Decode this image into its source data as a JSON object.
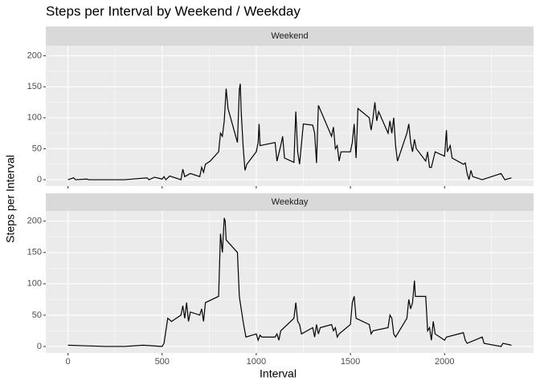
{
  "title": "Steps per Interval by Weekend / Weekday",
  "x_label": "Interval",
  "y_label": "Steps per Interval",
  "chart_data": [
    {
      "type": "line",
      "panel": "Weekend",
      "x": [
        0,
        30,
        40,
        100,
        110,
        300,
        420,
        430,
        460,
        500,
        510,
        520,
        540,
        600,
        610,
        620,
        650,
        700,
        710,
        720,
        730,
        755,
        800,
        810,
        820,
        830,
        840,
        850,
        900,
        910,
        915,
        920,
        930,
        940,
        945,
        950,
        1000,
        1010,
        1015,
        1020,
        1100,
        1110,
        1130,
        1140,
        1150,
        1200,
        1210,
        1220,
        1230,
        1250,
        1300,
        1310,
        1320,
        1330,
        1400,
        1410,
        1420,
        1430,
        1440,
        1450,
        1500,
        1510,
        1520,
        1530,
        1540,
        1600,
        1610,
        1620,
        1630,
        1640,
        1650,
        1700,
        1710,
        1720,
        1730,
        1740,
        1750,
        1800,
        1810,
        1820,
        1830,
        1840,
        1850,
        1900,
        1910,
        1920,
        1930,
        1950,
        2000,
        2010,
        2015,
        2030,
        2040,
        2100,
        2110,
        2120,
        2130,
        2140,
        2150,
        2200,
        2300,
        2320,
        2355
      ],
      "series": [
        {
          "color": "#000000",
          "values": [
            0,
            3,
            0,
            1,
            0,
            0,
            3,
            0,
            4,
            1,
            5,
            0,
            6,
            0,
            17,
            5,
            10,
            5,
            20,
            12,
            25,
            30,
            45,
            75,
            70,
            95,
            147,
            115,
            60,
            145,
            155,
            110,
            55,
            15,
            20,
            25,
            45,
            60,
            90,
            55,
            60,
            30,
            55,
            70,
            35,
            28,
            110,
            45,
            25,
            90,
            88,
            75,
            27,
            120,
            70,
            85,
            50,
            55,
            30,
            45,
            45,
            60,
            90,
            35,
            115,
            100,
            80,
            100,
            125,
            95,
            110,
            75,
            95,
            75,
            100,
            55,
            30,
            75,
            90,
            60,
            45,
            65,
            50,
            30,
            45,
            20,
            20,
            45,
            38,
            80,
            45,
            55,
            35,
            25,
            27,
            10,
            0,
            15,
            5,
            0,
            10,
            0,
            3
          ]
        }
      ],
      "xlim": [
        -117.75,
        2472.75
      ],
      "ylim": [
        -10.3,
        216.3
      ],
      "xticks": [
        0,
        500,
        1000,
        1500,
        2000
      ],
      "yticks": [
        0,
        50,
        100,
        150,
        200
      ],
      "xminor": [
        250,
        750,
        1250,
        1750,
        2250
      ],
      "yminor": [
        25,
        75,
        125,
        175
      ],
      "grid": true
    },
    {
      "type": "line",
      "panel": "Weekday",
      "x": [
        0,
        100,
        200,
        300,
        400,
        500,
        510,
        520,
        530,
        550,
        600,
        610,
        620,
        630,
        640,
        650,
        700,
        710,
        720,
        730,
        800,
        810,
        820,
        830,
        835,
        840,
        900,
        910,
        920,
        930,
        945,
        1000,
        1010,
        1020,
        1030,
        1100,
        1110,
        1120,
        1130,
        1200,
        1210,
        1220,
        1230,
        1240,
        1300,
        1310,
        1320,
        1330,
        1340,
        1400,
        1410,
        1420,
        1430,
        1440,
        1500,
        1510,
        1520,
        1530,
        1600,
        1610,
        1620,
        1700,
        1710,
        1720,
        1730,
        1740,
        1800,
        1810,
        1820,
        1830,
        1840,
        1845,
        1900,
        1910,
        1920,
        1930,
        1940,
        1950,
        2000,
        2010,
        2100,
        2110,
        2120,
        2200,
        2210,
        2300,
        2310,
        2355
      ],
      "series": [
        {
          "color": "#000000",
          "values": [
            2,
            1,
            0,
            0,
            2,
            0,
            5,
            25,
            45,
            40,
            50,
            65,
            45,
            70,
            40,
            55,
            50,
            60,
            40,
            70,
            80,
            180,
            150,
            205,
            200,
            170,
            150,
            80,
            60,
            40,
            15,
            20,
            10,
            18,
            15,
            15,
            20,
            10,
            25,
            45,
            70,
            40,
            35,
            20,
            30,
            15,
            35,
            20,
            30,
            35,
            25,
            30,
            15,
            20,
            35,
            70,
            80,
            45,
            35,
            20,
            25,
            30,
            50,
            45,
            20,
            15,
            45,
            75,
            60,
            70,
            105,
            80,
            80,
            25,
            30,
            10,
            40,
            20,
            10,
            15,
            22,
            10,
            5,
            15,
            5,
            0,
            5,
            2
          ]
        }
      ],
      "xlim": [
        -117.75,
        2472.75
      ],
      "ylim": [
        -10.3,
        216.3
      ],
      "xticks": [
        0,
        500,
        1000,
        1500,
        2000
      ],
      "yticks": [
        0,
        50,
        100,
        150,
        200
      ],
      "xminor": [
        250,
        750,
        1250,
        1750,
        2250
      ],
      "yminor": [
        25,
        75,
        125,
        175
      ],
      "grid": true
    }
  ]
}
